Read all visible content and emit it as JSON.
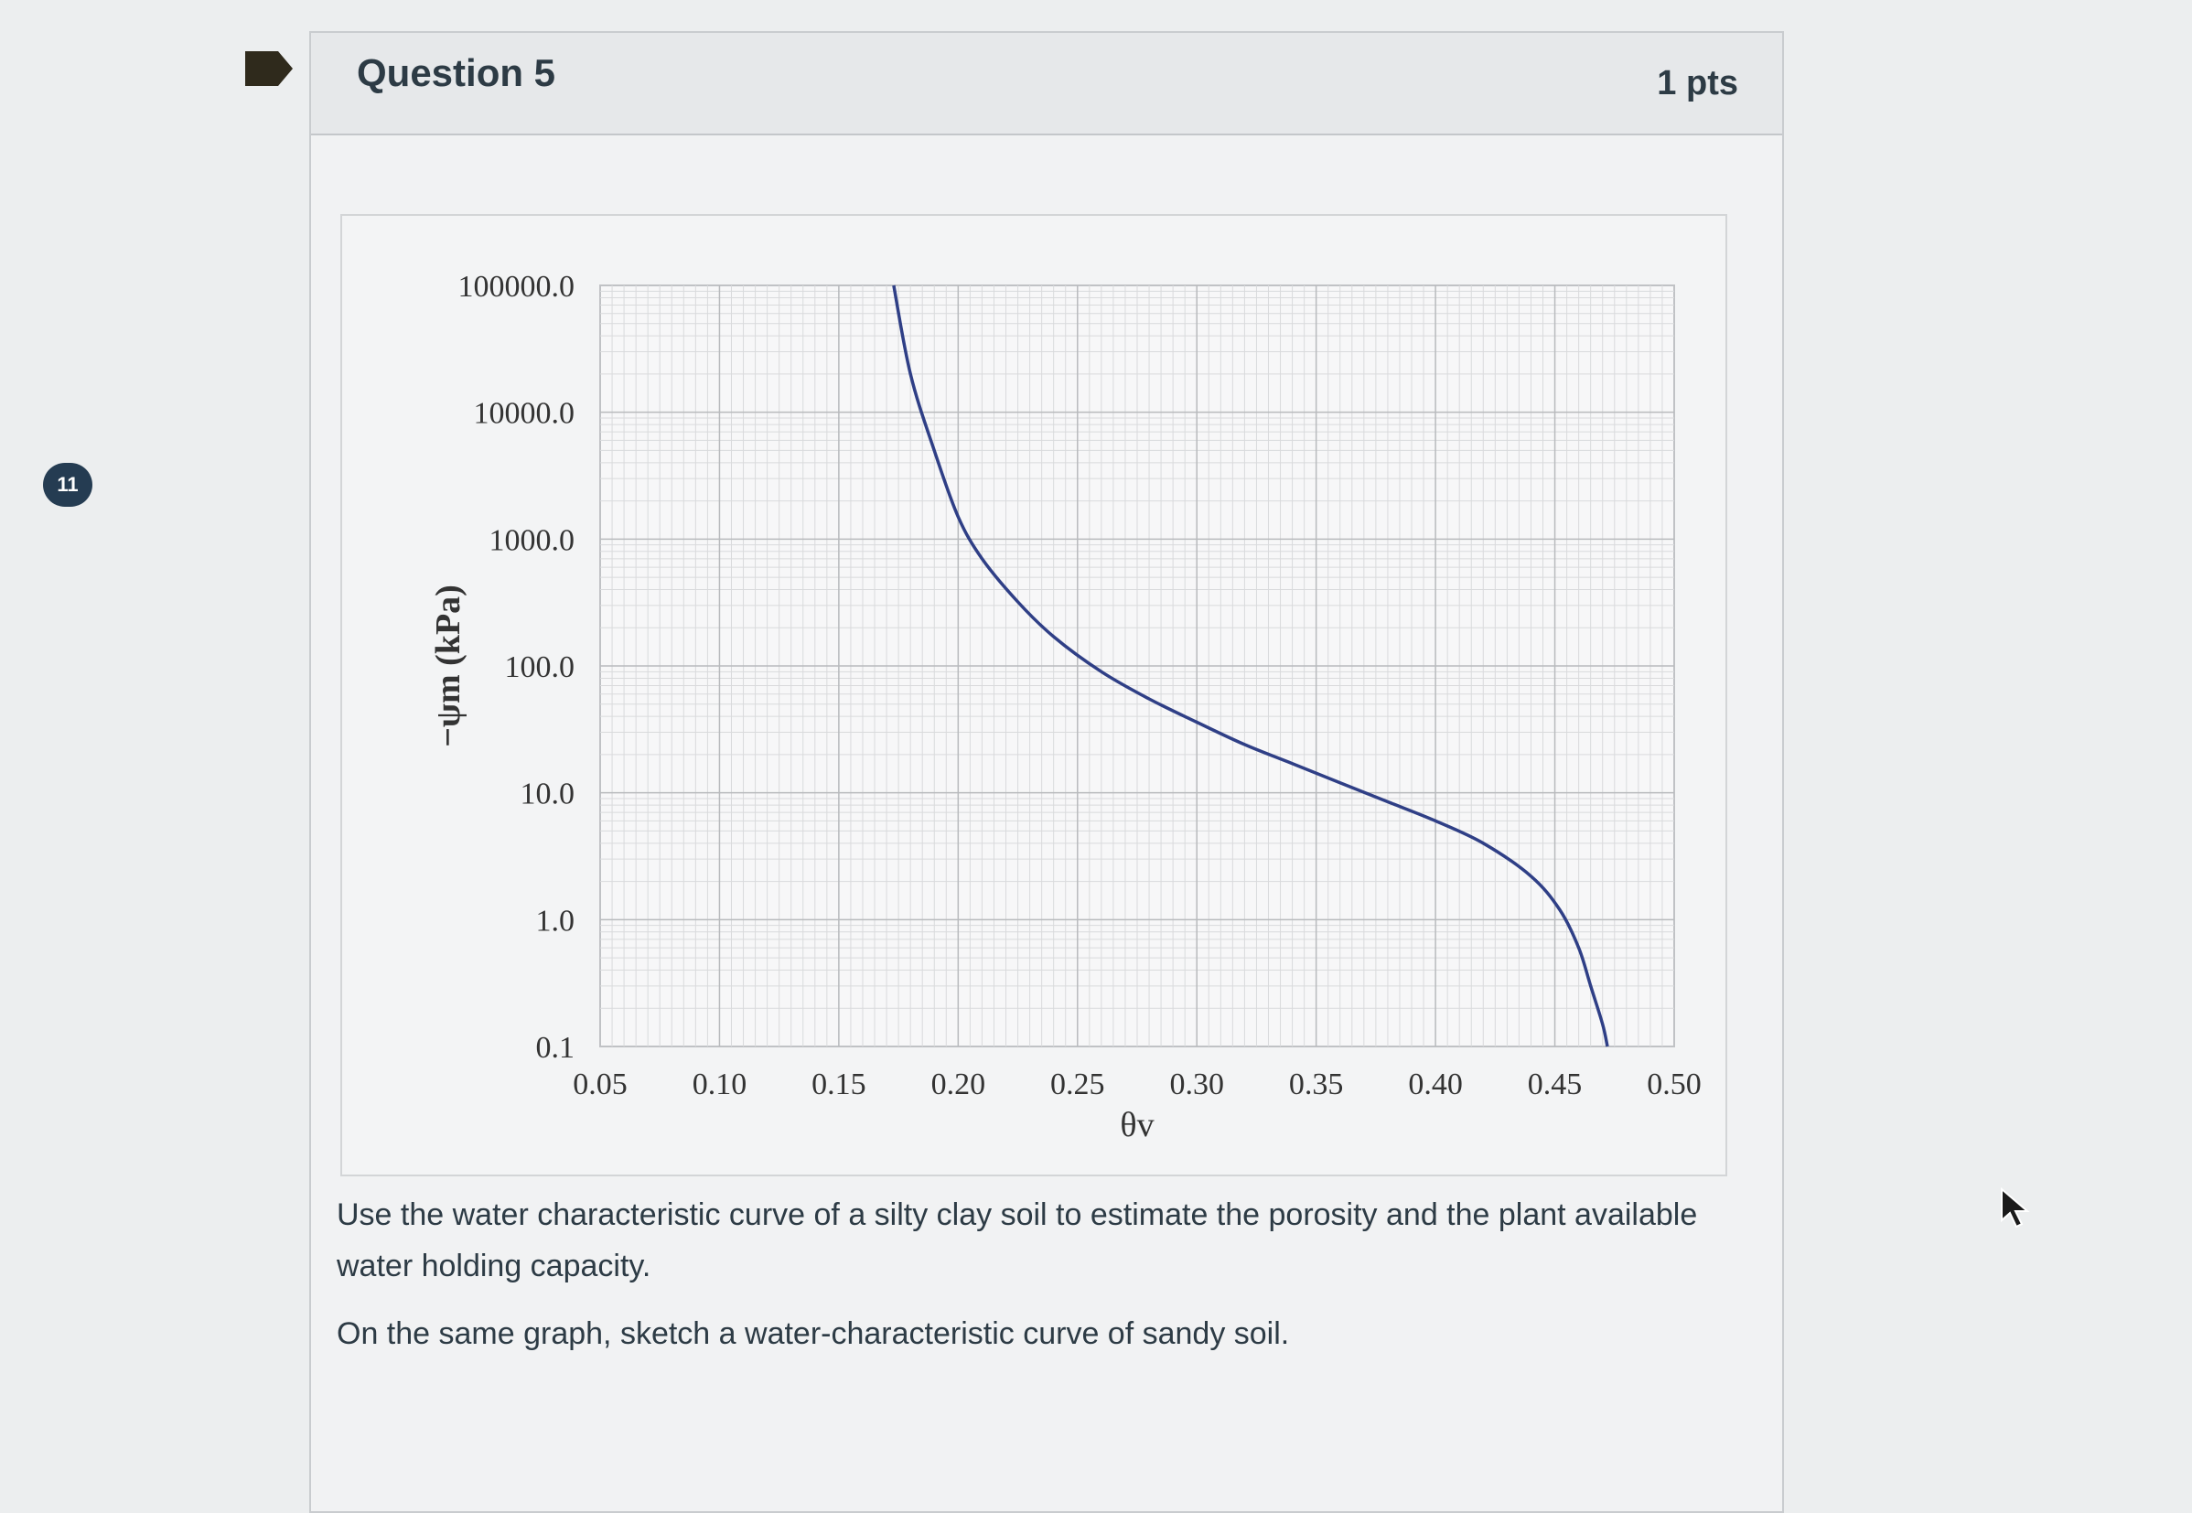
{
  "nav": {
    "question_number": "11"
  },
  "question": {
    "title": "Question 5",
    "points": "1 pts",
    "prompt_1": "Use the water characteristic curve of a silty clay soil to estimate the porosity and the plant available water holding capacity.",
    "prompt_2": "On the same graph, sketch a water-characteristic curve of sandy soil."
  },
  "icons": {
    "flag": "flag-icon",
    "cursor": "cursor-arrow-icon"
  },
  "colors": {
    "badge": "#253c52",
    "curve": "#2f3f86",
    "text": "#2d3b45"
  },
  "chart_data": {
    "type": "line",
    "xlabel": "θv",
    "ylabel": "−ψm (kPa)",
    "xlim": [
      0.05,
      0.5
    ],
    "ylim": [
      0.1,
      100000
    ],
    "y_scale": "log",
    "grid": true,
    "x_ticks": [
      "0.05",
      "0.10",
      "0.15",
      "0.20",
      "0.25",
      "0.30",
      "0.35",
      "0.40",
      "0.45",
      "0.50"
    ],
    "y_ticks": [
      "100000.0",
      "10000.0",
      "1000.0",
      "100.0",
      "10.0",
      "1.0",
      "0.1"
    ],
    "series": [
      {
        "x": [
          0.173,
          0.18,
          0.19,
          0.2,
          0.21,
          0.225,
          0.24,
          0.26,
          0.28,
          0.3,
          0.32,
          0.34,
          0.36,
          0.38,
          0.4,
          0.42,
          0.44,
          0.452,
          0.46,
          0.465,
          0.47,
          0.472
        ],
        "y": [
          100000,
          20000,
          5000,
          1500,
          700,
          320,
          170,
          90,
          55,
          36,
          24,
          17,
          12,
          8.5,
          6,
          4,
          2.2,
          1.2,
          0.6,
          0.3,
          0.15,
          0.1
        ]
      }
    ]
  }
}
